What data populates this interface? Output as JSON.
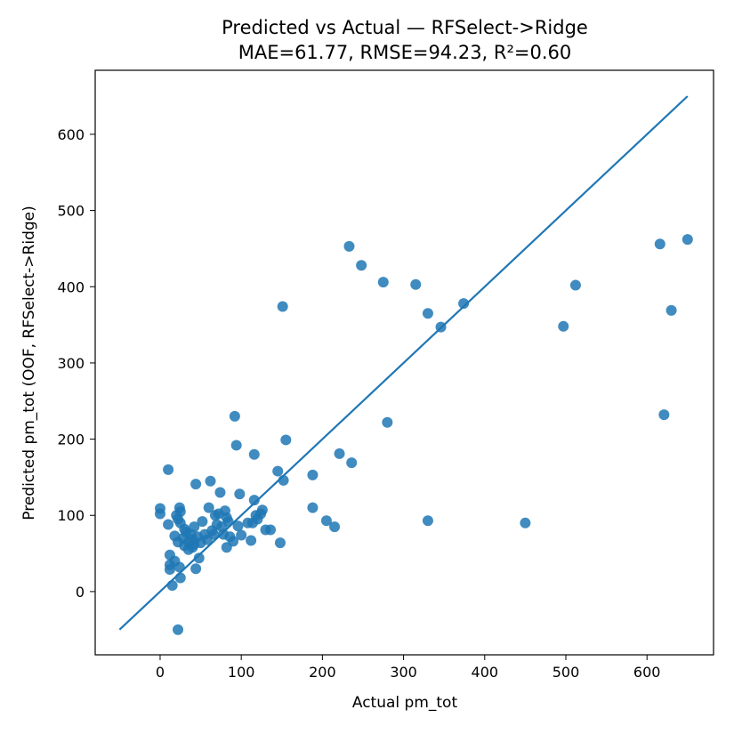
{
  "chart_data": {
    "type": "scatter",
    "title": "Predicted vs Actual — RFSelect->Ridge",
    "subtitle": "MAE=61.77, RMSE=94.23, R²=0.60",
    "xlabel": "Actual pm_tot",
    "ylabel": "Predicted pm_tot (OOF, RFSelect->Ridge)",
    "xlim": [
      -80,
      682
    ],
    "ylim": [
      -83,
      684
    ],
    "xticks": [
      0,
      100,
      200,
      300,
      400,
      500,
      600
    ],
    "yticks": [
      0,
      100,
      200,
      300,
      400,
      500,
      600
    ],
    "grid": false,
    "colors": {
      "points": "#1f77b4",
      "line": "#1f77b4"
    },
    "reference_line": {
      "x": [
        -50,
        650
      ],
      "y": [
        -50,
        650
      ]
    },
    "points": [
      [
        0,
        109
      ],
      [
        0,
        102
      ],
      [
        10,
        160
      ],
      [
        10,
        88
      ],
      [
        12,
        48
      ],
      [
        12,
        35
      ],
      [
        12,
        29
      ],
      [
        15,
        8
      ],
      [
        18,
        40
      ],
      [
        18,
        73
      ],
      [
        20,
        100
      ],
      [
        22,
        -50
      ],
      [
        22,
        95
      ],
      [
        22,
        65
      ],
      [
        24,
        110
      ],
      [
        24,
        32
      ],
      [
        25,
        105
      ],
      [
        25,
        90
      ],
      [
        25,
        18
      ],
      [
        28,
        70
      ],
      [
        30,
        82
      ],
      [
        30,
        60
      ],
      [
        32,
        78
      ],
      [
        35,
        65
      ],
      [
        35,
        55
      ],
      [
        38,
        75
      ],
      [
        40,
        68
      ],
      [
        40,
        58
      ],
      [
        42,
        85
      ],
      [
        42,
        62
      ],
      [
        44,
        141
      ],
      [
        44,
        30
      ],
      [
        46,
        72
      ],
      [
        48,
        44
      ],
      [
        50,
        64
      ],
      [
        52,
        92
      ],
      [
        55,
        75
      ],
      [
        58,
        68
      ],
      [
        60,
        110
      ],
      [
        62,
        145
      ],
      [
        64,
        80
      ],
      [
        66,
        75
      ],
      [
        68,
        100
      ],
      [
        70,
        88
      ],
      [
        72,
        102
      ],
      [
        74,
        130
      ],
      [
        76,
        85
      ],
      [
        78,
        75
      ],
      [
        80,
        106
      ],
      [
        82,
        58
      ],
      [
        82,
        97
      ],
      [
        84,
        92
      ],
      [
        86,
        72
      ],
      [
        90,
        66
      ],
      [
        92,
        230
      ],
      [
        94,
        192
      ],
      [
        96,
        86
      ],
      [
        98,
        128
      ],
      [
        100,
        74
      ],
      [
        108,
        90
      ],
      [
        112,
        67
      ],
      [
        114,
        90
      ],
      [
        116,
        120
      ],
      [
        116,
        180
      ],
      [
        118,
        100
      ],
      [
        120,
        95
      ],
      [
        124,
        102
      ],
      [
        126,
        107
      ],
      [
        130,
        81
      ],
      [
        136,
        81
      ],
      [
        145,
        158
      ],
      [
        148,
        64
      ],
      [
        151,
        374
      ],
      [
        152,
        146
      ],
      [
        155,
        199
      ],
      [
        188,
        153
      ],
      [
        188,
        110
      ],
      [
        205,
        93
      ],
      [
        215,
        85
      ],
      [
        221,
        181
      ],
      [
        233,
        453
      ],
      [
        236,
        169
      ],
      [
        248,
        428
      ],
      [
        275,
        406
      ],
      [
        280,
        222
      ],
      [
        315,
        403
      ],
      [
        330,
        365
      ],
      [
        330,
        93
      ],
      [
        346,
        347
      ],
      [
        374,
        378
      ],
      [
        450,
        90
      ],
      [
        497,
        348
      ],
      [
        512,
        402
      ],
      [
        616,
        456
      ],
      [
        621,
        232
      ],
      [
        630,
        369
      ],
      [
        650,
        462
      ]
    ]
  }
}
